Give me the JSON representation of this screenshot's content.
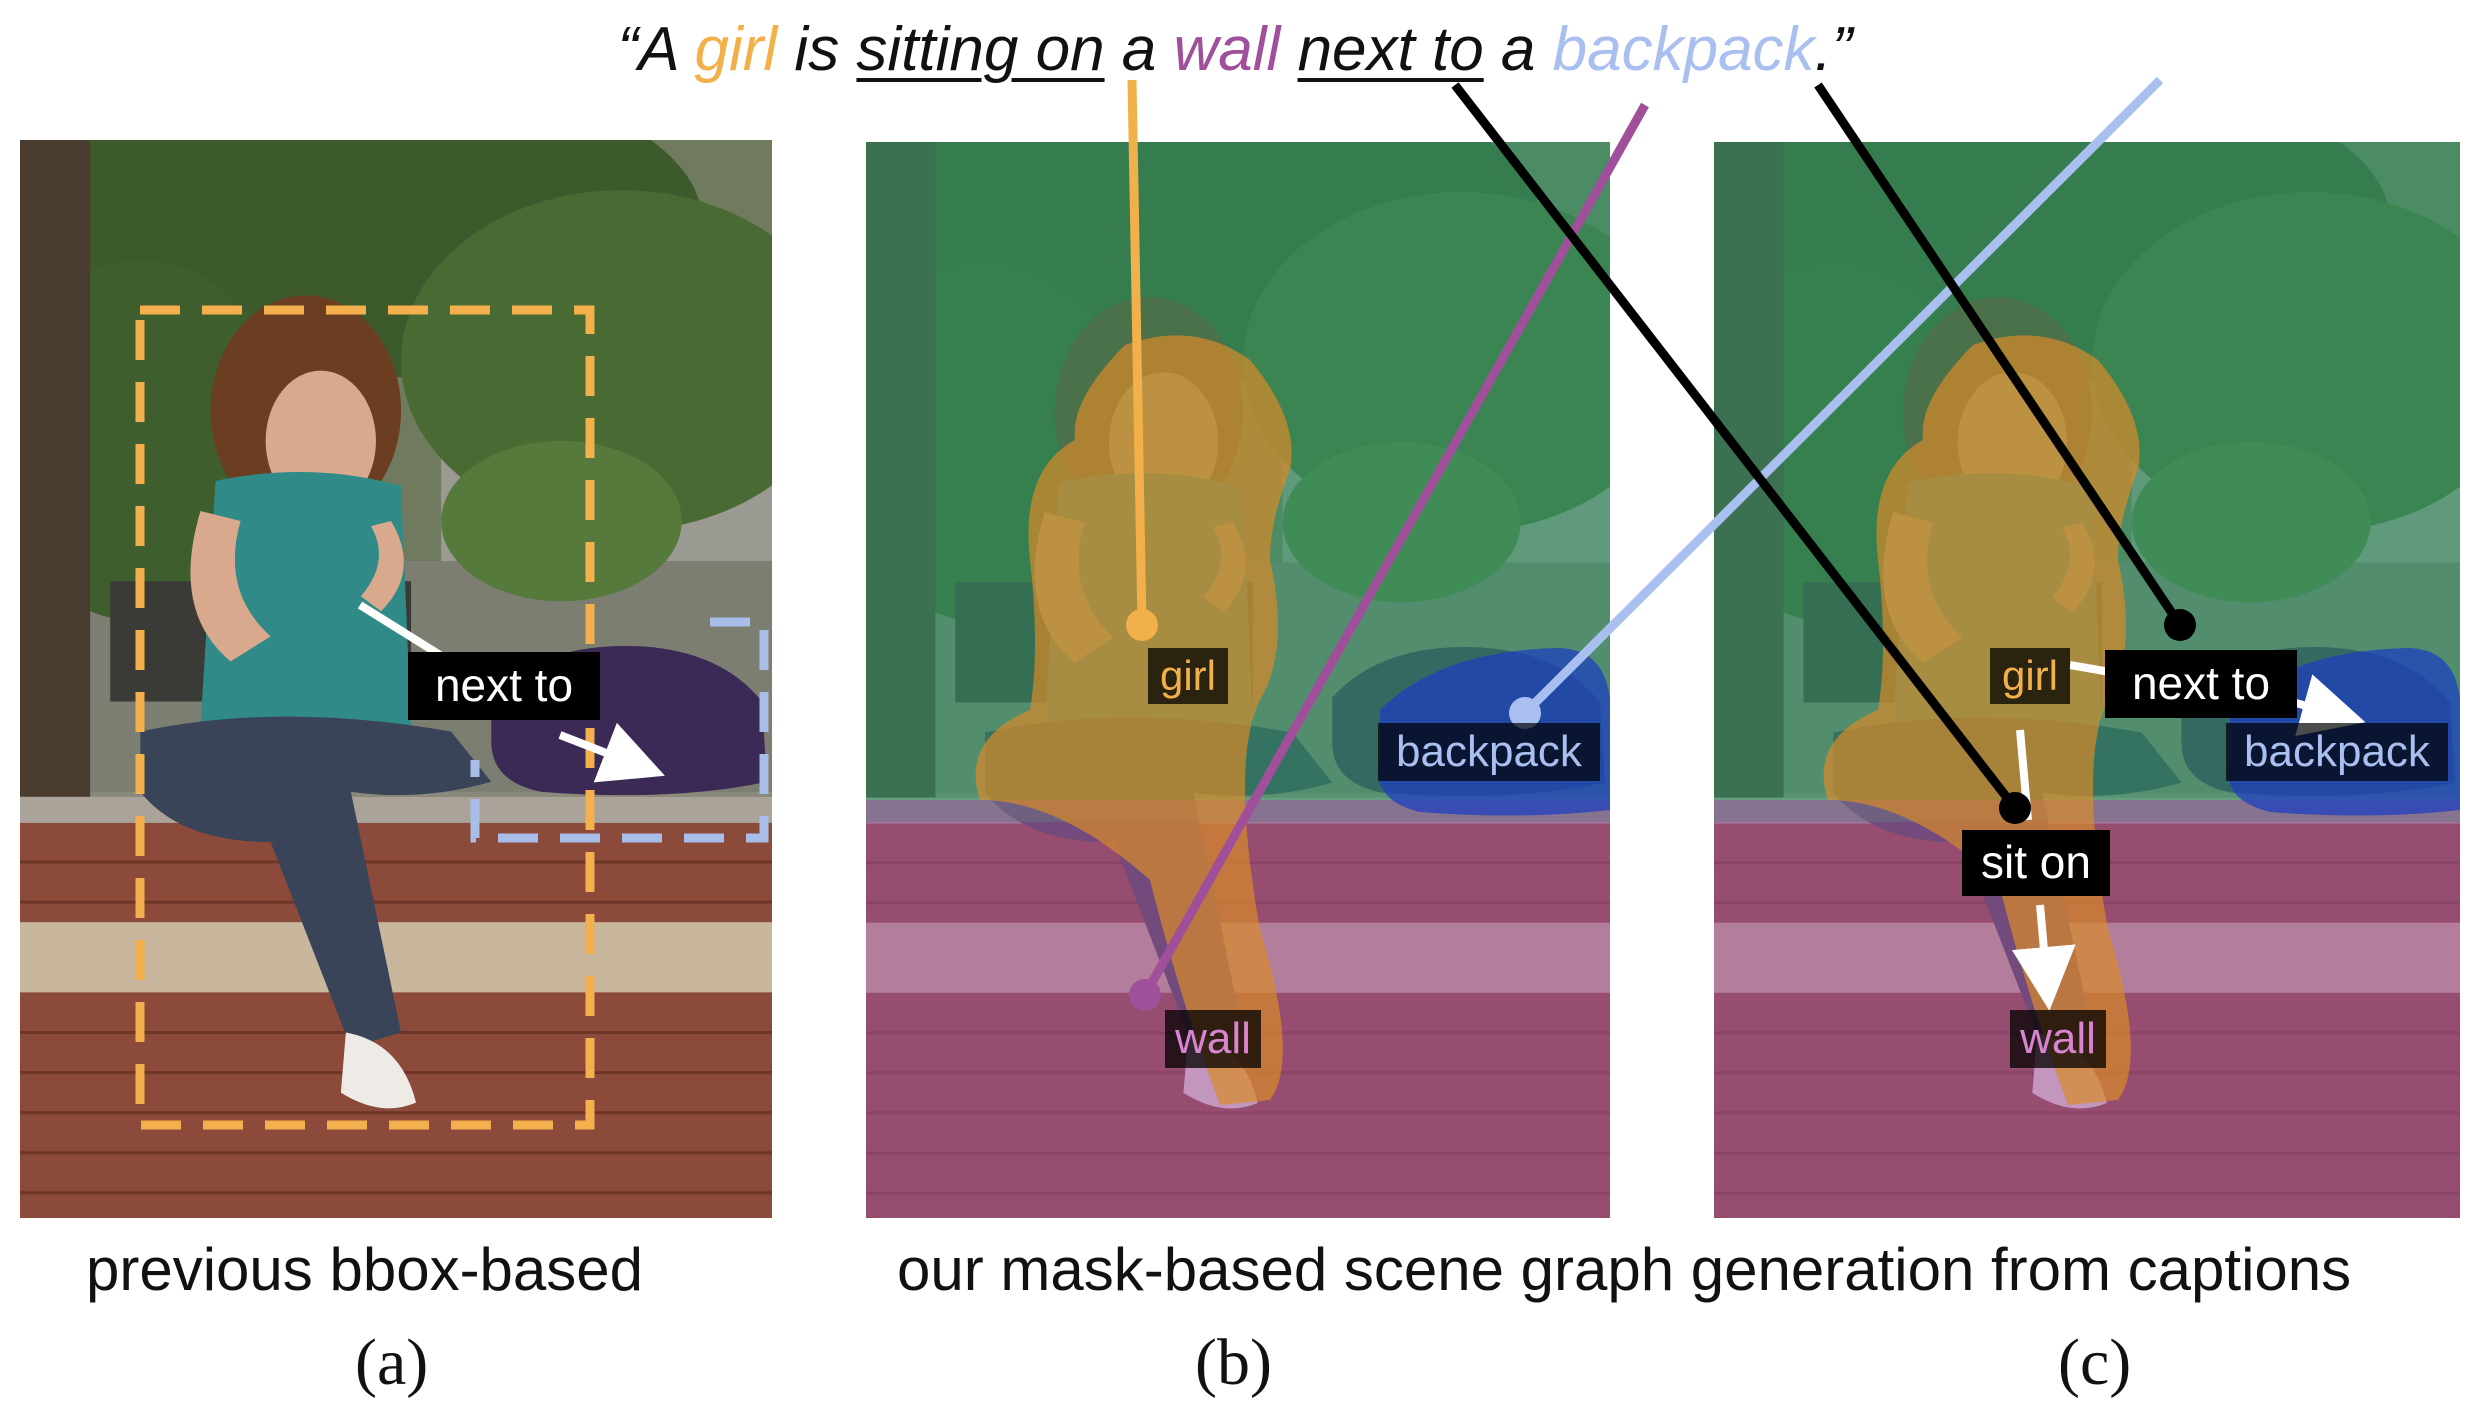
{
  "caption": {
    "open_quote": "“A ",
    "w_girl": "girl",
    "w_is": " is ",
    "w_sitting_on": "sitting on",
    "w_a1": " a ",
    "w_wall": "wall",
    "w_sp": " ",
    "w_next_to": "next to",
    "w_a2": " a ",
    "w_backpack": "backpack",
    "close": ".”"
  },
  "panel_a": {
    "relation_label": "next to"
  },
  "panel_b": {
    "labels": {
      "girl": "girl",
      "backpack": "backpack",
      "wall": "wall"
    }
  },
  "panel_c": {
    "labels": {
      "girl": "girl",
      "backpack": "backpack",
      "wall": "wall"
    },
    "relations": {
      "next_to": "next to",
      "sit_on": "sit on"
    }
  },
  "bottom": {
    "left_caption": "previous bbox-based",
    "right_caption": "our mask-based scene graph generation from captions",
    "sub_a": "(a)",
    "sub_b": "(b)",
    "sub_c": "(c)"
  },
  "colors": {
    "girl": "#f2b04a",
    "wall": "#a0509a",
    "backpack": "#a9bfef",
    "relation": "#000000",
    "bbox_girl": "#f4b04c",
    "bbox_backpack": "#a8bde8"
  }
}
